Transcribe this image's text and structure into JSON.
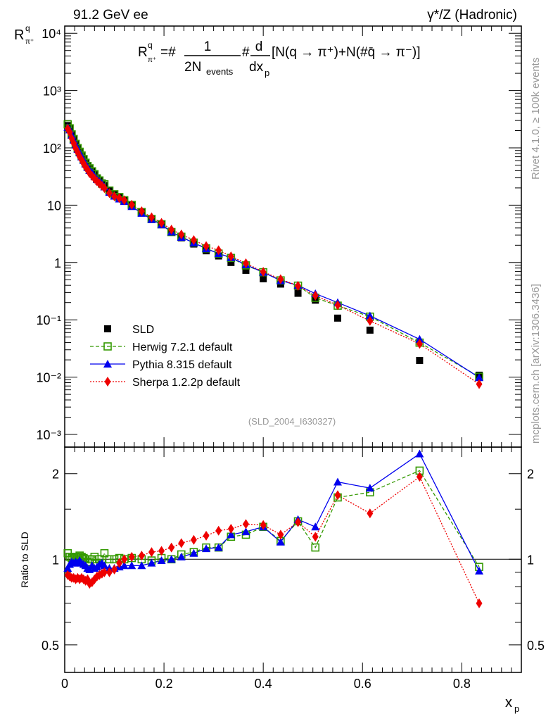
{
  "chart_data": {
    "type": "scatter",
    "title_left": "91.2 GeV ee",
    "title_right": "γ*/Z (Hadronic)",
    "ylabel": "R",
    "ylabel_sup": "q",
    "ylabel_sub": "π⁺",
    "formula": {
      "lhs": "R",
      "sup": "q",
      "sub": "π⁺",
      "eq": "=#",
      "num1": "1",
      "den1": "2N",
      "den1sub": "events",
      "hash": "#",
      "num2": "d",
      "den2": "dx",
      "den2sub": "p",
      "rest": "[N(q → π⁺)+N(#q̄ → π⁻)]"
    },
    "side_text_top": "Rivet 4.1.0, ≥ 100k events",
    "side_text_bottom": "mcplots.cern.ch [arXiv:1306.3436]",
    "analysis_id": "(SLD_2004_I630327)",
    "xlabel": "x",
    "xlabel_sub": "p",
    "ratio_ylabel": "Ratio to SLD",
    "xlim": [
      0,
      0.92
    ],
    "ylim": [
      0.001,
      10000
    ],
    "ratio_ylim": [
      0.4,
      2.48
    ],
    "yscale": "log",
    "x_ticks": [
      "0",
      "0.2",
      "0.4",
      "0.6",
      "0.8"
    ],
    "y_ticks": [
      "10⁻³",
      "10⁻²",
      "10⁻¹",
      "1",
      "10",
      "10²",
      "10³",
      "10⁴"
    ],
    "ratio_ticks": [
      "0.5",
      "1",
      "2"
    ],
    "legend_position": "middle-left",
    "x": [
      0.006,
      0.01,
      0.014,
      0.018,
      0.022,
      0.026,
      0.03,
      0.034,
      0.038,
      0.042,
      0.046,
      0.05,
      0.055,
      0.06,
      0.065,
      0.07,
      0.075,
      0.08,
      0.09,
      0.1,
      0.11,
      0.12,
      0.135,
      0.155,
      0.175,
      0.195,
      0.215,
      0.235,
      0.26,
      0.285,
      0.31,
      0.335,
      0.365,
      0.4,
      0.435,
      0.47,
      0.505,
      0.55,
      0.615,
      0.715,
      0.835
    ],
    "data": {
      "name": "SLD",
      "color": "#000000",
      "values": [
        245,
        215,
        170,
        140,
        115,
        97,
        83,
        72,
        63,
        55,
        49,
        44,
        39,
        34,
        30,
        27,
        24.5,
        22,
        18,
        15.5,
        13.7,
        12.2,
        10,
        7.6,
        5.8,
        4.6,
        3.4,
        2.7,
        2.1,
        1.6,
        1.3,
        1.0,
        0.73,
        0.52,
        0.42,
        0.29,
        0.22,
        0.107,
        0.066,
        0.0195,
        0.0108
      ]
    },
    "series": [
      {
        "name": "Herwig 7.2.1 default",
        "color": "#339900",
        "marker": "open-square",
        "dash": "5,3",
        "ratio": [
          1.05,
          1.02,
          1.01,
          1.02,
          1.02,
          1.02,
          1.03,
          1.02,
          1.01,
          1.0,
          0.98,
          1.0,
          1.0,
          1.02,
          0.97,
          1.0,
          0.97,
          1.05,
          1.0,
          1.0,
          1.01,
          1.0,
          1.01,
          1.0,
          0.99,
          1.01,
          1.0,
          1.04,
          1.06,
          1.1,
          1.1,
          1.2,
          1.22,
          1.3,
          1.16,
          1.36,
          1.1,
          1.65,
          1.72,
          2.05,
          0.94
        ]
      },
      {
        "name": "Pythia 8.315 default",
        "color": "#0000ee",
        "marker": "triangle",
        "dash": "",
        "ratio": [
          0.93,
          0.96,
          0.98,
          0.97,
          0.98,
          0.97,
          0.99,
          0.97,
          0.96,
          0.95,
          0.93,
          0.92,
          0.95,
          0.93,
          0.94,
          0.96,
          0.97,
          0.95,
          0.93,
          0.93,
          0.94,
          0.95,
          0.95,
          0.95,
          0.97,
          0.99,
          1.0,
          1.02,
          1.05,
          1.09,
          1.1,
          1.22,
          1.25,
          1.3,
          1.15,
          1.38,
          1.3,
          1.87,
          1.78,
          2.35,
          0.91
        ]
      },
      {
        "name": "Sherpa 1.2.2p default",
        "color": "#ee0000",
        "marker": "diamond",
        "dash": "2,2",
        "ratio": [
          0.88,
          0.87,
          0.86,
          0.86,
          0.85,
          0.86,
          0.85,
          0.86,
          0.85,
          0.84,
          0.85,
          0.82,
          0.83,
          0.85,
          0.87,
          0.88,
          0.89,
          0.9,
          0.9,
          0.92,
          0.97,
          1.0,
          1.02,
          1.03,
          1.06,
          1.07,
          1.1,
          1.14,
          1.17,
          1.21,
          1.26,
          1.28,
          1.33,
          1.32,
          1.22,
          1.35,
          1.2,
          1.68,
          1.45,
          1.95,
          0.7
        ]
      }
    ]
  }
}
